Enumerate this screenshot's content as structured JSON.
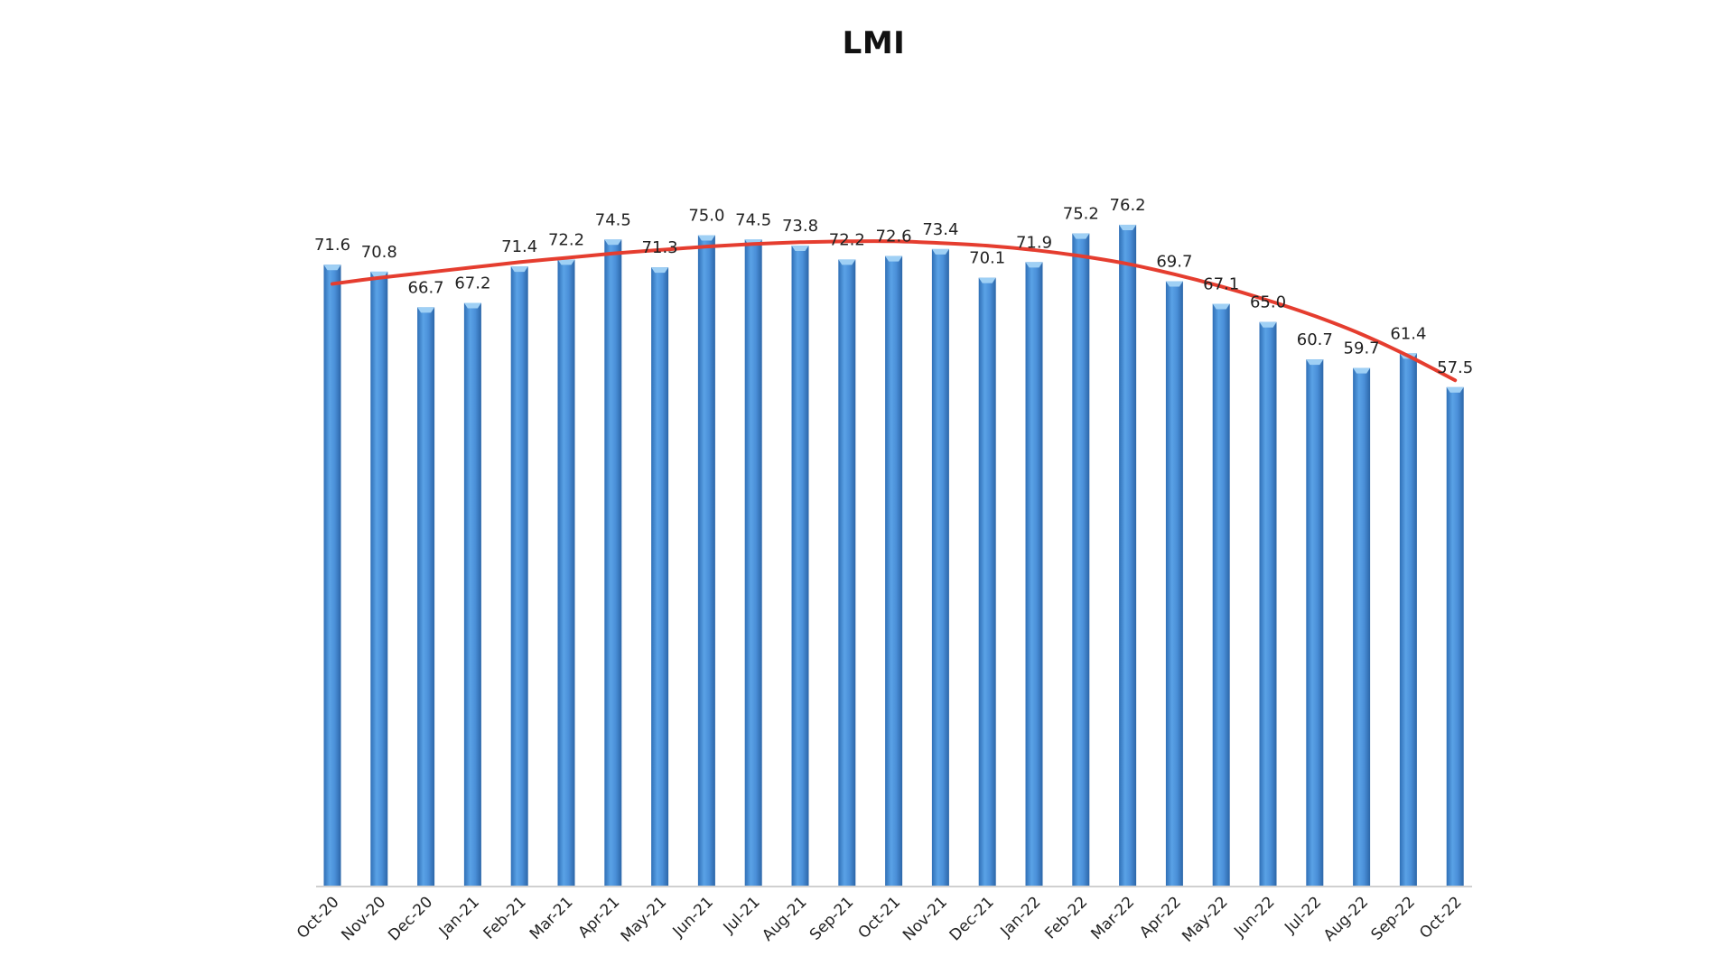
{
  "chart_data": {
    "type": "bar",
    "title": "LMI",
    "xlabel": "",
    "ylabel": "",
    "ylim": [
      0,
      90
    ],
    "grid": false,
    "legend": "none",
    "categories": [
      "Oct-20",
      "Nov-20",
      "Dec-20",
      "Jan-21",
      "Feb-21",
      "Mar-21",
      "Apr-21",
      "May-21",
      "Jun-21",
      "Jul-21",
      "Aug-21",
      "Sep-21",
      "Oct-21",
      "Nov-21",
      "Dec-21",
      "Jan-22",
      "Feb-22",
      "Mar-22",
      "Apr-22",
      "May-22",
      "Jun-22",
      "Jul-22",
      "Aug-22",
      "Sep-22",
      "Oct-22"
    ],
    "values": [
      71.6,
      70.8,
      66.7,
      67.2,
      71.4,
      72.2,
      74.5,
      71.3,
      75.0,
      74.5,
      73.8,
      72.2,
      72.6,
      73.4,
      70.1,
      71.9,
      75.2,
      76.2,
      69.7,
      67.1,
      65.0,
      60.7,
      59.7,
      61.4,
      57.5
    ],
    "value_labels": [
      "71.6",
      "70.8",
      "66.7",
      "67.2",
      "71.4",
      "72.2",
      "74.5",
      "71.3",
      "75.0",
      "74.5",
      "73.8",
      "72.2",
      "72.6",
      "73.4",
      "70.1",
      "71.9",
      "75.2",
      "76.2",
      "69.7",
      "67.1",
      "65.0",
      "60.7",
      "59.7",
      "61.4",
      "57.5"
    ],
    "trendline": {
      "type": "polynomial",
      "values": [
        69.6,
        70.3,
        70.9,
        71.5,
        72.1,
        72.6,
        73.1,
        73.5,
        73.9,
        74.2,
        74.4,
        74.5,
        74.5,
        74.3,
        74.0,
        73.5,
        72.8,
        71.9,
        70.7,
        69.3,
        67.7,
        65.9,
        63.8,
        61.3,
        58.5
      ]
    },
    "colors": {
      "bar": "#4a8fd8",
      "bar_top": "#9fd0f5",
      "bar_dark": "#2f6fb6",
      "trend": "#e53d2f",
      "axis": "#d0d0d0"
    }
  }
}
